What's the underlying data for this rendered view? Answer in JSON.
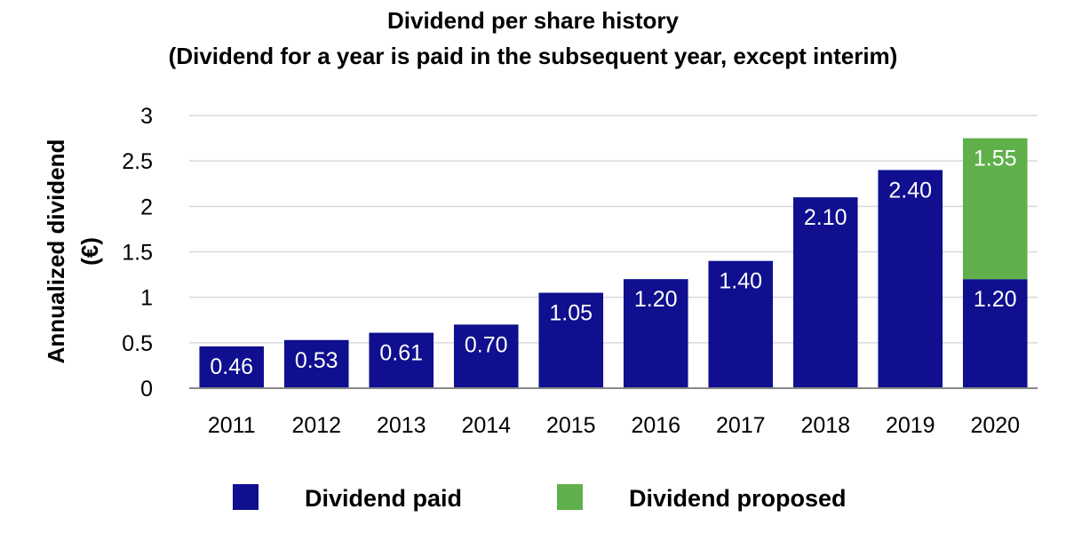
{
  "chart_data": {
    "type": "bar",
    "stacked": true,
    "title": "Dividend per share history",
    "subtitle": "(Dividend for a year is paid in the subsequent year, except interim)",
    "ylabel_line1": "Annualized dividend",
    "ylabel_line2": "(€)",
    "xlabel": "",
    "ylim": [
      0,
      3
    ],
    "yticks": [
      0,
      0.5,
      1,
      1.5,
      2,
      2.5,
      3
    ],
    "ytick_labels": [
      "0",
      "0.5",
      "1",
      "1.5",
      "2",
      "2.5",
      "3"
    ],
    "grid": true,
    "categories": [
      "2011",
      "2012",
      "2013",
      "2014",
      "2015",
      "2016",
      "2017",
      "2018",
      "2019",
      "2020"
    ],
    "series": [
      {
        "name": "Dividend paid",
        "color": "#0f0f8f",
        "values": [
          0.46,
          0.53,
          0.61,
          0.7,
          1.05,
          1.2,
          1.4,
          2.1,
          2.4,
          1.2
        ],
        "labels": [
          "0.46",
          "0.53",
          "0.61",
          "0.70",
          "1.05",
          "1.20",
          "1.40",
          "2.10",
          "2.40",
          "1.20"
        ]
      },
      {
        "name": "Dividend proposed",
        "color": "#5fb04a",
        "values": [
          0,
          0,
          0,
          0,
          0,
          0,
          0,
          0,
          0,
          1.55
        ],
        "labels": [
          "",
          "",
          "",
          "",
          "",
          "",
          "",
          "",
          "",
          "1.55"
        ]
      }
    ],
    "legend_position": "bottom"
  }
}
